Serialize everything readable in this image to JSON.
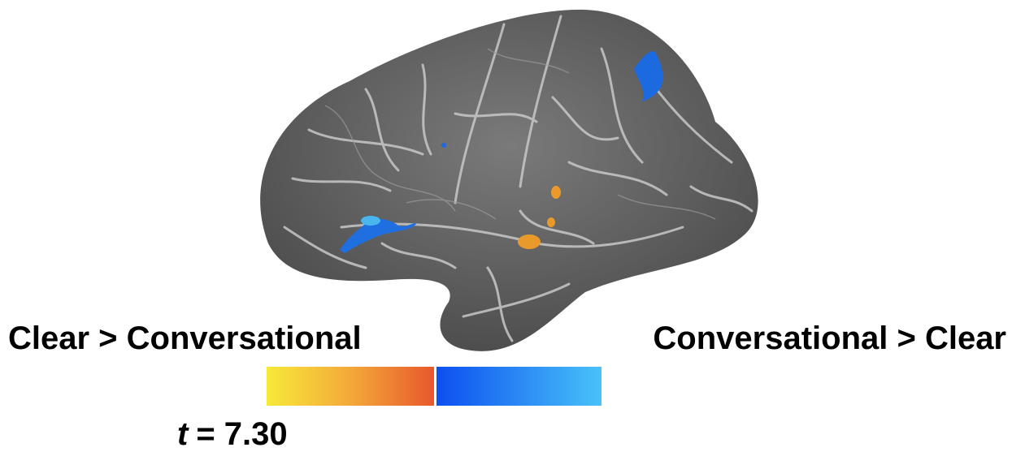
{
  "labels": {
    "left": "Clear > Conversational",
    "right": "Conversational > Clear"
  },
  "threshold": {
    "symbol": "t",
    "text": "= 7.30"
  }
}
